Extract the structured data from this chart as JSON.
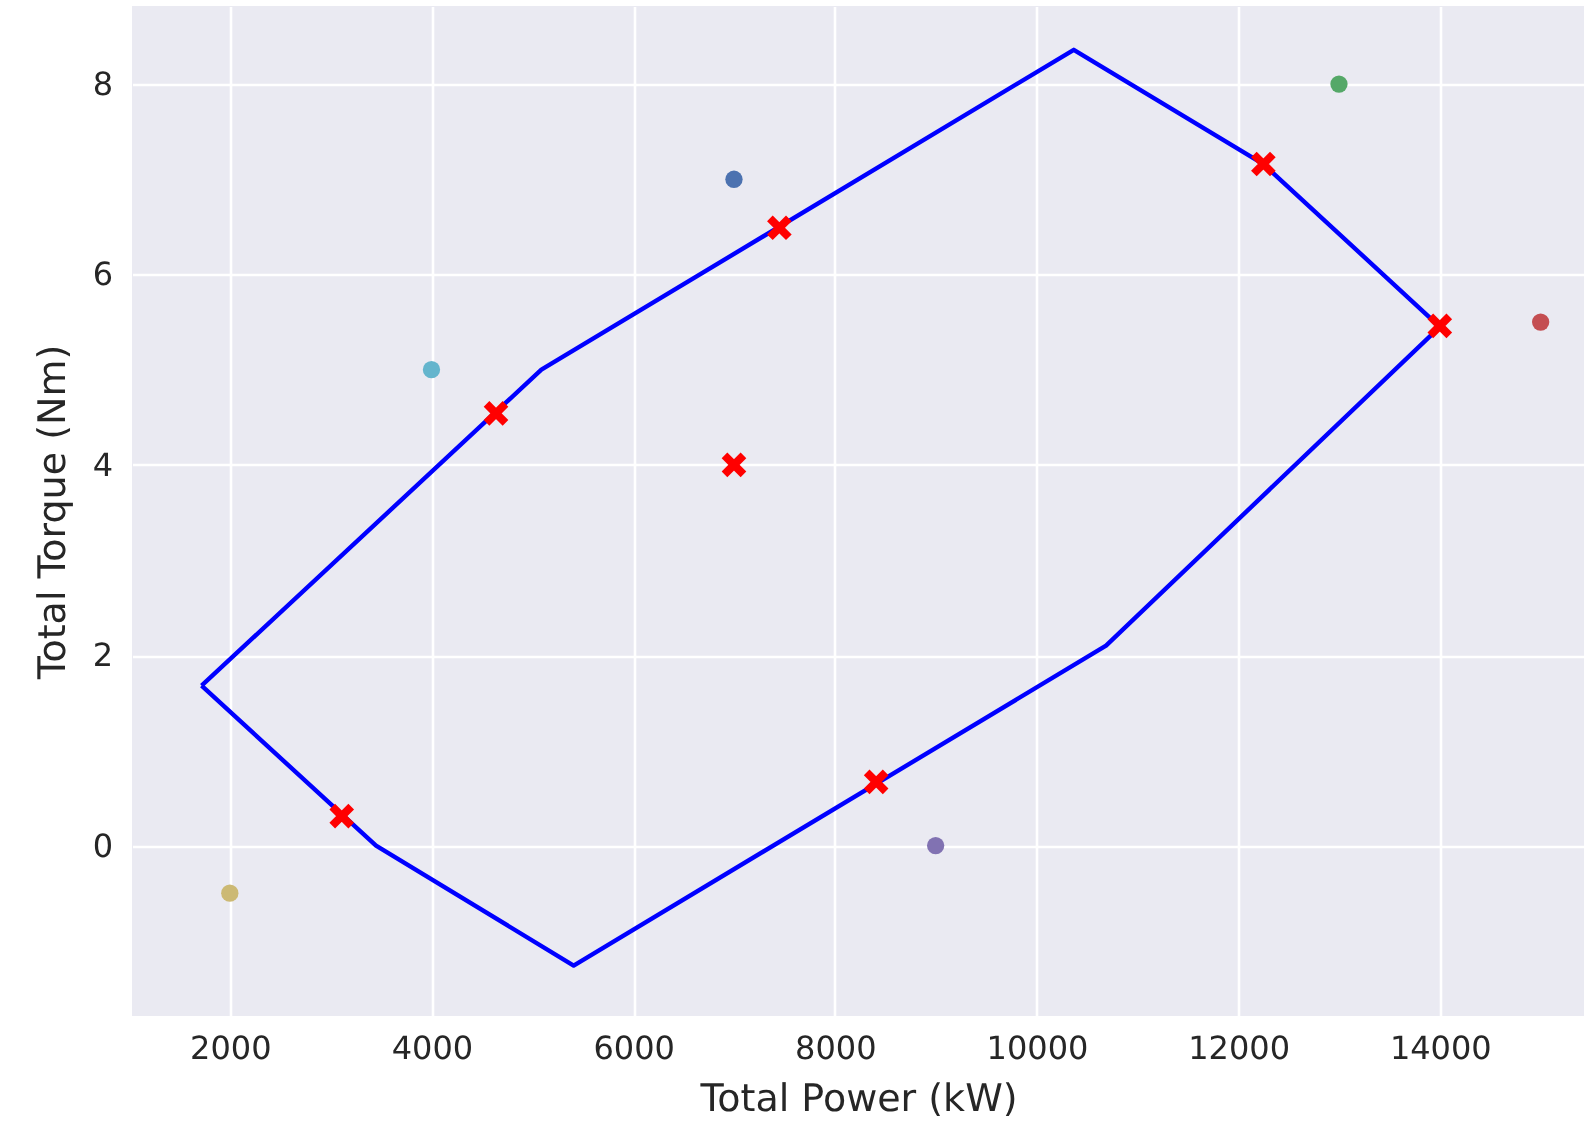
{
  "chart_data": {
    "type": "scatter",
    "xlabel": "Total Power (kW)",
    "ylabel": "Total Torque (Nm)",
    "xlim": [
      1030,
      15430
    ],
    "ylim": [
      -1.79,
      8.82
    ],
    "xticks": [
      2000,
      4000,
      6000,
      8000,
      10000,
      12000,
      14000
    ],
    "yticks": [
      0,
      2,
      4,
      6,
      8
    ],
    "grid": true,
    "series": [
      {
        "type": "line",
        "color": "#0000ff",
        "marker": "none",
        "line_style": "solid",
        "x": [
          1720,
          5090,
          10370,
          12250,
          14000
        ],
        "values": [
          1.68,
          5.0,
          8.36,
          7.16,
          5.45
        ]
      },
      {
        "type": "line",
        "color": "#0000ff",
        "marker": "none",
        "line_style": "solid",
        "x": [
          1720,
          3450,
          5410,
          10690,
          14000
        ],
        "values": [
          1.68,
          0.0,
          -1.26,
          2.1,
          5.45
        ]
      },
      {
        "marker": "circle",
        "x": [
          2000,
          4000,
          7000,
          9000,
          13000,
          15000
        ],
        "values": [
          -0.5,
          5,
          7,
          0,
          8,
          5.5
        ],
        "colors": [
          "#ccb974",
          "#64b5cd",
          "#4c72b0",
          "#8172b2",
          "#55a868",
          "#c44e52"
        ]
      },
      {
        "marker": "cross",
        "color": "#ff0000",
        "x": [
          3110,
          4640,
          7000,
          7450,
          8410,
          12250,
          14000
        ],
        "values": [
          0.31,
          4.54,
          4.0,
          6.49,
          0.67,
          7.16,
          5.46
        ]
      }
    ]
  }
}
